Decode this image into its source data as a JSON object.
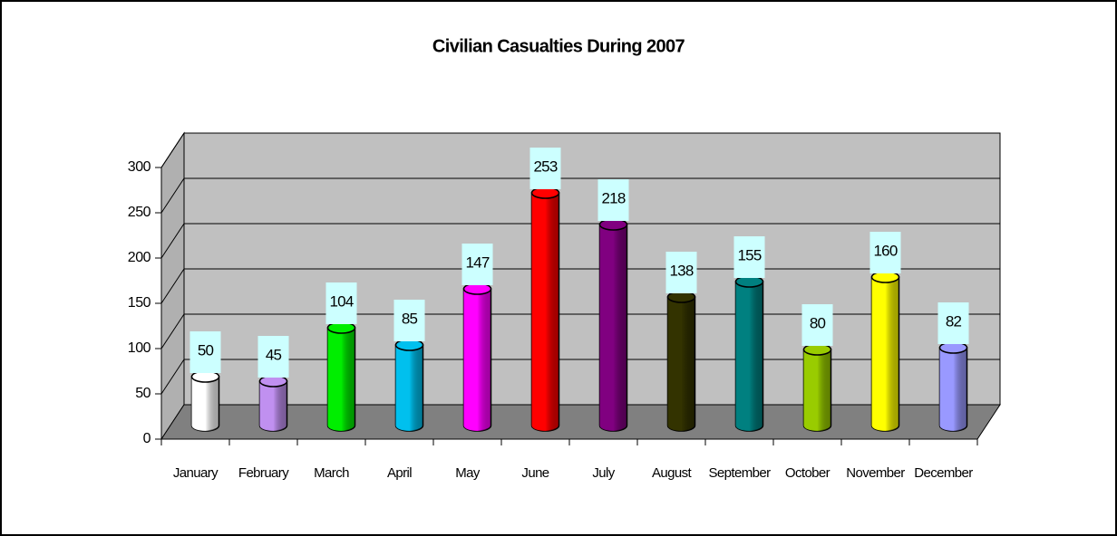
{
  "chart_data": {
    "type": "bar",
    "title": "Civilian Casualties During 2007",
    "categories": [
      "January",
      "February",
      "March",
      "April",
      "May",
      "June",
      "July",
      "August",
      "September",
      "October",
      "November",
      "December"
    ],
    "values": [
      50,
      45,
      104,
      85,
      147,
      253,
      218,
      138,
      155,
      80,
      160,
      82
    ],
    "colors": [
      "#ffffff",
      "#c090f0",
      "#00ee00",
      "#00c0ee",
      "#ff00ff",
      "#ff0000",
      "#800080",
      "#333300",
      "#008080",
      "#99cc00",
      "#ffff00",
      "#9999ff"
    ],
    "ylim": [
      0,
      300
    ],
    "yticks": [
      0,
      50,
      100,
      150,
      200,
      250,
      300
    ],
    "grid": true
  }
}
